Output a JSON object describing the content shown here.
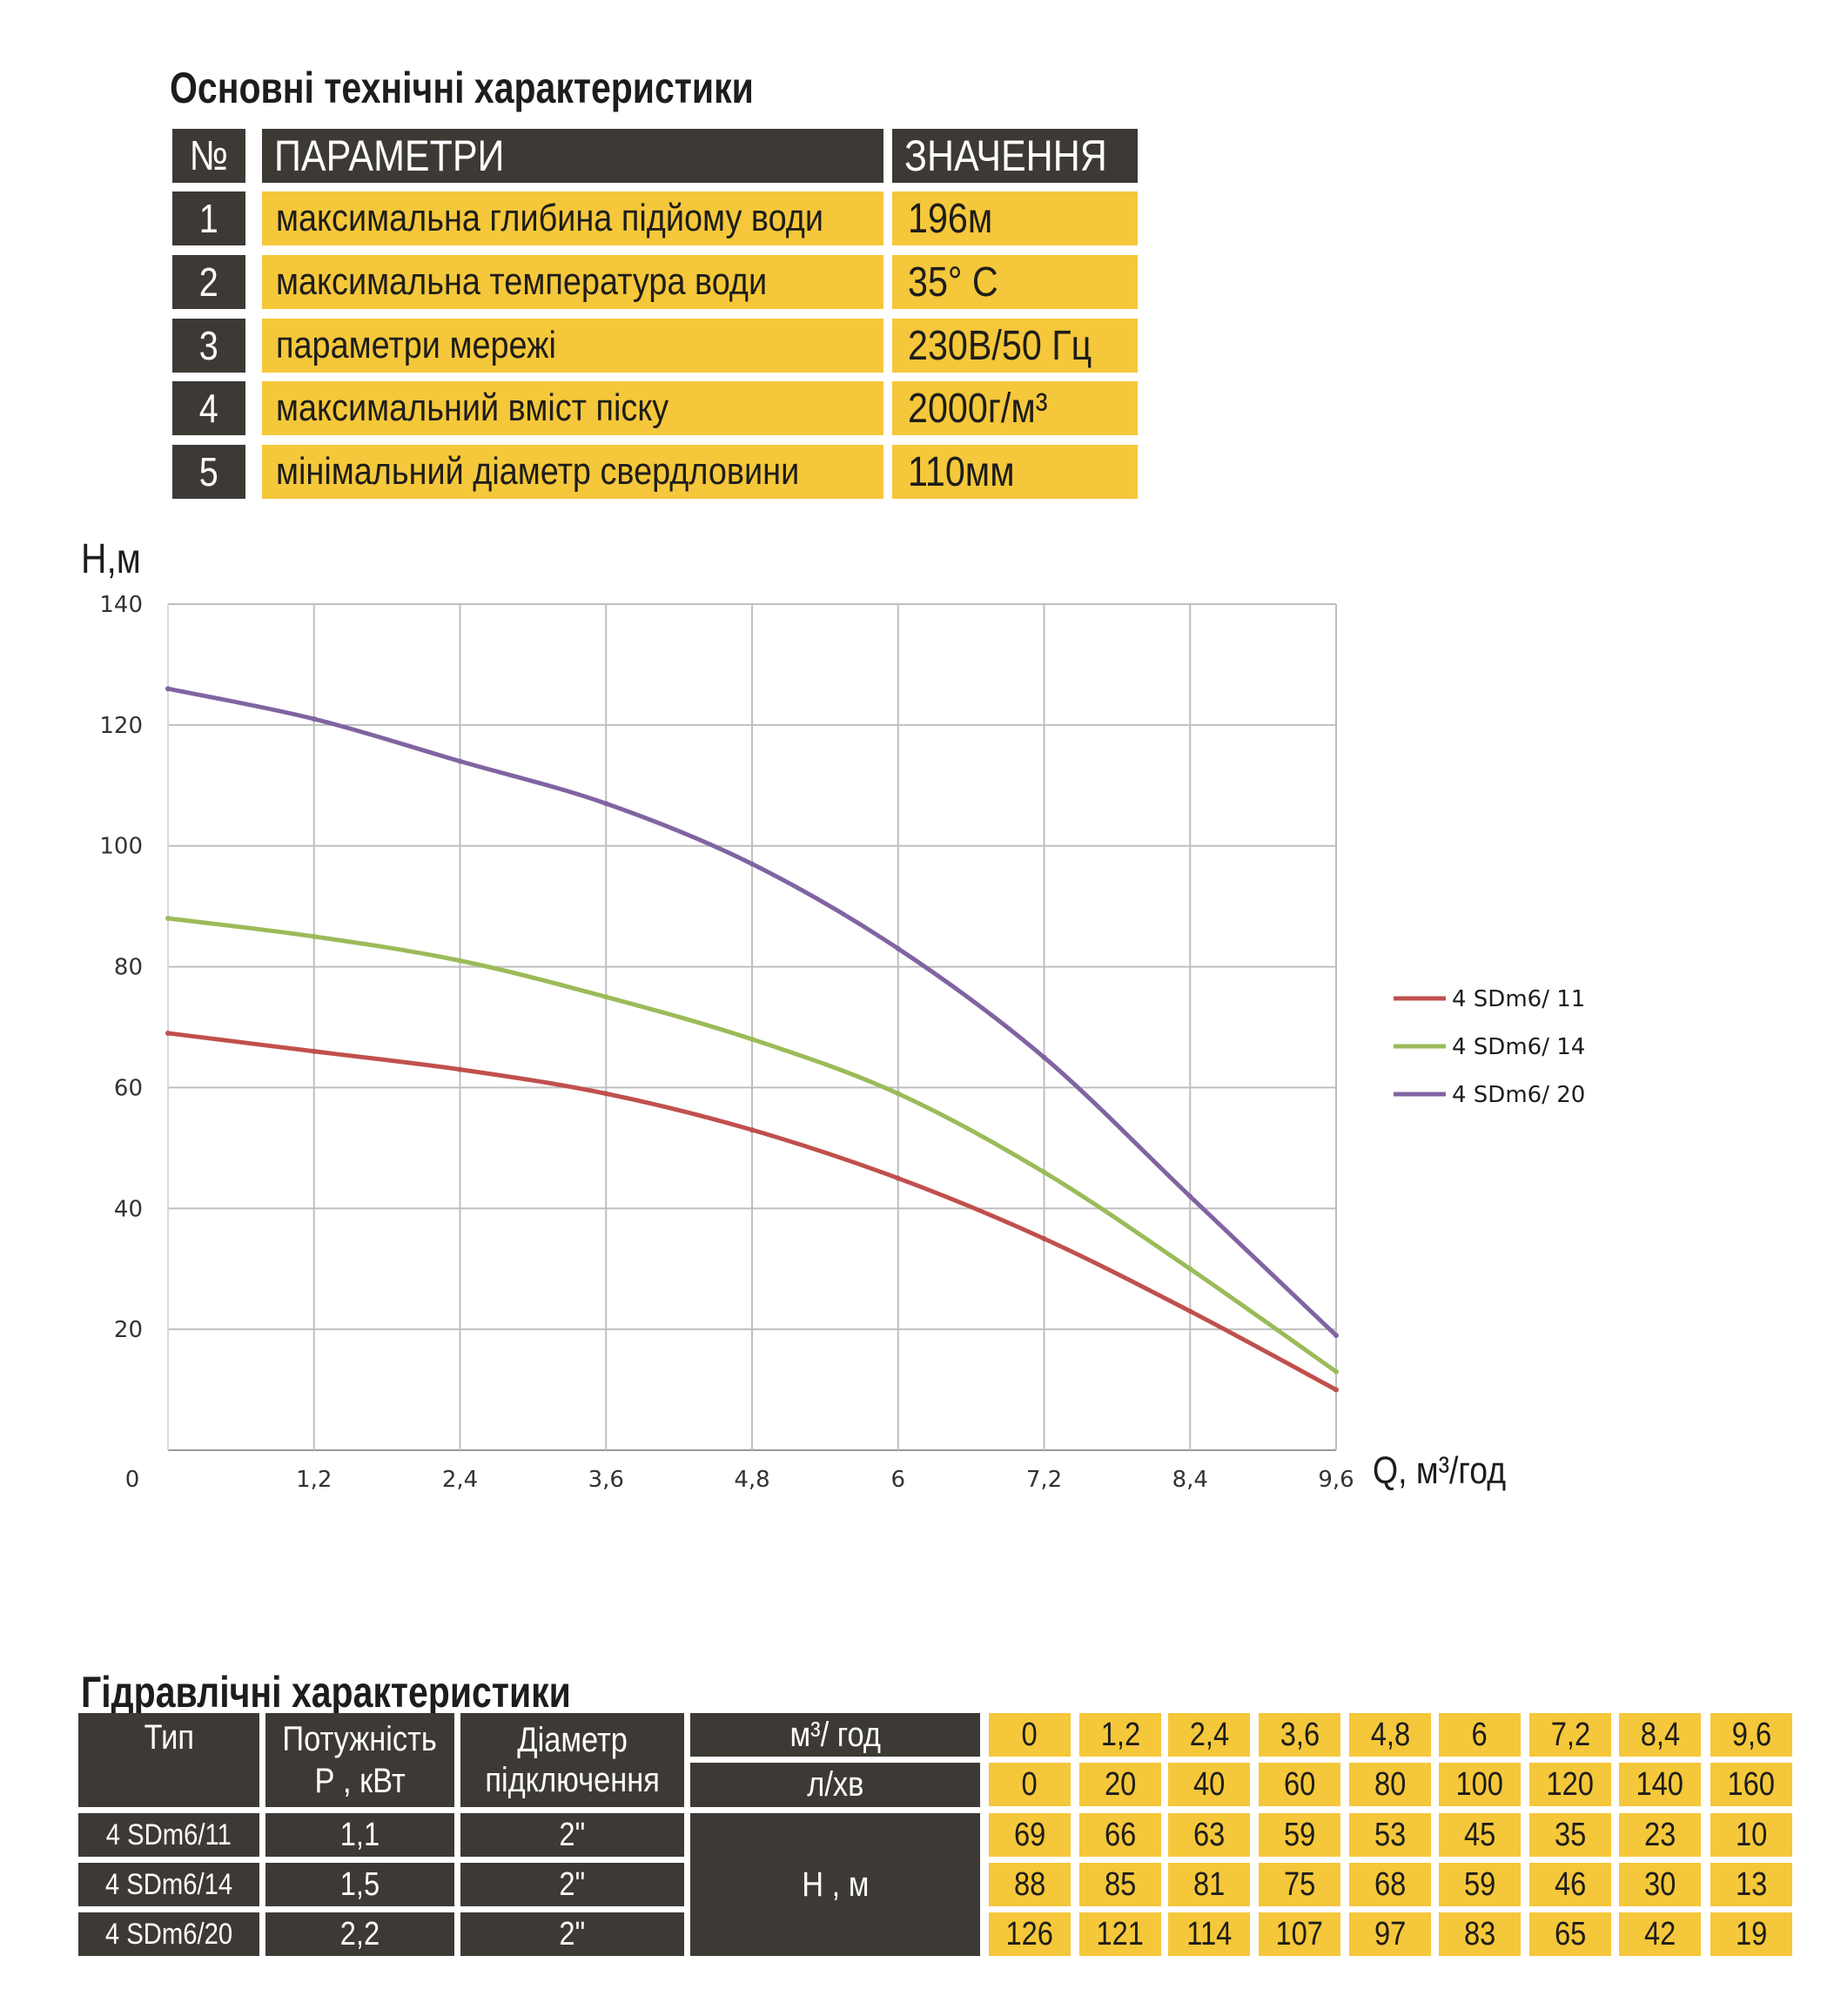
{
  "spec_section": {
    "title": "Основні технічні характеристики",
    "headers": {
      "num": "№",
      "param": "ПАРАМЕТРИ",
      "value": "ЗНАЧЕННЯ"
    },
    "rows": [
      {
        "num": "1",
        "param": "максимальна глибина підйому води",
        "value": "196м"
      },
      {
        "num": "2",
        "param": "максимальна температура води",
        "value": "35° С"
      },
      {
        "num": "3",
        "param": "параметри мережі",
        "value": "230В/50 Гц"
      },
      {
        "num": "4",
        "param": "максимальний вміст піску",
        "value": "2000г/м³"
      },
      {
        "num": "5",
        "param": "мінімальний діаметр свердловини",
        "value": "110мм"
      }
    ]
  },
  "chart_data": {
    "type": "line",
    "title": "",
    "xlabel": "Q, м³/год",
    "ylabel": "Н,м",
    "x": [
      0,
      1.2,
      2.4,
      3.6,
      4.8,
      6,
      7.2,
      8.4,
      9.6
    ],
    "x_tick_labels": [
      "0",
      "1,2",
      "2,4",
      "3,6",
      "4,8",
      "6",
      "7,2",
      "8,4",
      "9,6"
    ],
    "y_tick_labels": [
      "20",
      "40",
      "60",
      "80",
      "100",
      "120",
      "140"
    ],
    "xlim": [
      0,
      9.6
    ],
    "ylim": [
      0,
      140
    ],
    "grid": true,
    "legend_position": "right",
    "series": [
      {
        "name": "4 SDm6/ 11",
        "color": "#c0504d",
        "values": [
          69,
          66,
          63,
          59,
          53,
          45,
          35,
          23,
          10
        ]
      },
      {
        "name": "4 SDm6/ 14",
        "color": "#9bbb59",
        "values": [
          88,
          85,
          81,
          75,
          68,
          59,
          46,
          30,
          13
        ]
      },
      {
        "name": "4 SDm6/ 20",
        "color": "#8064a2",
        "values": [
          126,
          121,
          114,
          107,
          97,
          83,
          65,
          42,
          19
        ]
      }
    ]
  },
  "hydraulic_section": {
    "title": "Гідравлічні характеристики",
    "headers": {
      "type": "Тип",
      "power_line1": "Потужність",
      "power_line2": "Р , кВт",
      "diameter_line1": "Діаметр",
      "diameter_line2": "підключення",
      "flow_m3h": "м³/ год",
      "flow_lmin": "л/хв",
      "head": "Н , м"
    },
    "flow_m3h": [
      "0",
      "1,2",
      "2,4",
      "3,6",
      "4,8",
      "6",
      "7,2",
      "8,4",
      "9,6"
    ],
    "flow_lmin": [
      "0",
      "20",
      "40",
      "60",
      "80",
      "100",
      "120",
      "140",
      "160"
    ],
    "rows": [
      {
        "type": "4 SDm6/11",
        "power": "1,1",
        "diameter": "2\"",
        "head": [
          "69",
          "66",
          "63",
          "59",
          "53",
          "45",
          "35",
          "23",
          "10"
        ]
      },
      {
        "type": "4 SDm6/14",
        "power": "1,5",
        "diameter": "2\"",
        "head": [
          "88",
          "85",
          "81",
          "75",
          "68",
          "59",
          "46",
          "30",
          "13"
        ]
      },
      {
        "type": "4 SDm6/20",
        "power": "2,2",
        "diameter": "2\"",
        "head": [
          "126",
          "121",
          "114",
          "107",
          "97",
          "83",
          "65",
          "42",
          "19"
        ]
      }
    ]
  },
  "colors": {
    "dark": "#3d3a36",
    "accent": "#f5c73a",
    "grid": "#bfbfbf"
  }
}
